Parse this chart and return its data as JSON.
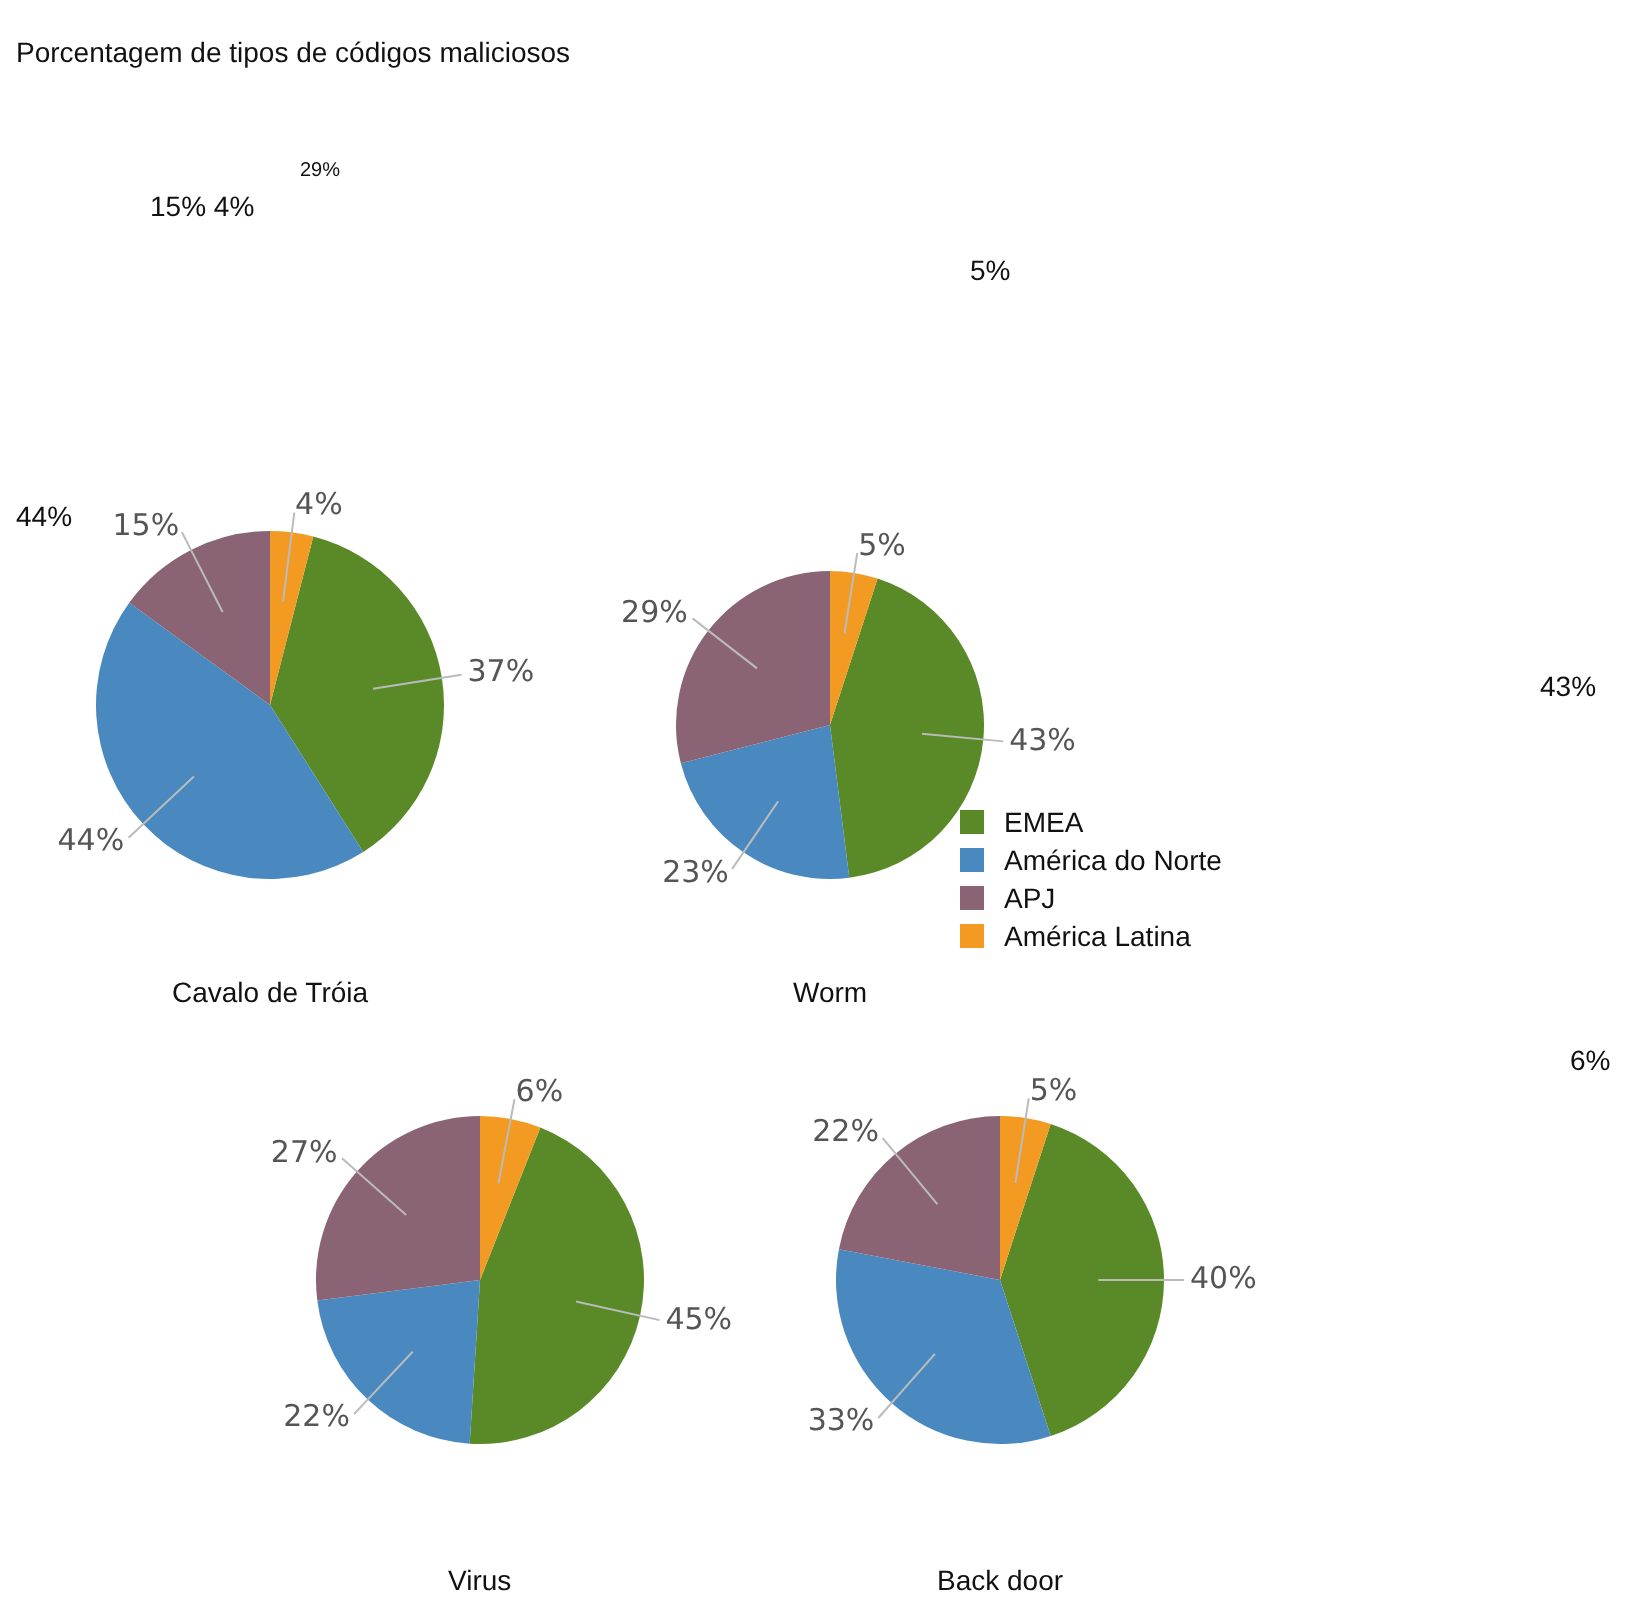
{
  "chart_data": [
    {
      "type": "pie",
      "title": "Porcentagem de tipos de códigos maliciosos",
      "subtitle": "Cavalo de Tróia",
      "categories": [
        null,
        null,
        null,
        null
      ],
      "values": [
        37,
        44,
        15,
        4
      ],
      "colors": [
        "#5a8a28",
        "#4a89c0",
        "#8a6475",
        "#f39a23"
      ],
      "value_labels": [
        "37%",
        "44%",
        "15%",
        "4%"
      ],
      "annotations": [
        "15% 4%",
        "29%",
        "44%"
      ]
    },
    {
      "type": "pie",
      "subtitle": "Worm",
      "categories": [
        "EMEA",
        "América do Norte",
        "APJ",
        "América Latina"
      ],
      "values": [
        43,
        23,
        29,
        5
      ],
      "colors": [
        "#5a8a28",
        "#4a89c0",
        "#8a6475",
        "#f39a23"
      ],
      "value_labels": [
        "43%",
        "23%",
        "29%",
        "5%"
      ],
      "legend": "right",
      "annotations": [
        "5%",
        "43%"
      ]
    },
    {
      "type": "pie",
      "subtitle": "Virus",
      "categories": [
        null,
        null,
        null,
        null
      ],
      "values": [
        45,
        22,
        27,
        6
      ],
      "colors": [
        "#5a8a28",
        "#4a89c0",
        "#8a6475",
        "#f39a23"
      ],
      "value_labels": [
        "45%",
        "22%",
        "27%",
        "6%"
      ]
    },
    {
      "type": "pie",
      "subtitle": "Back door",
      "categories": [
        null,
        null,
        null,
        null
      ],
      "values": [
        40,
        33,
        22,
        5
      ],
      "colors": [
        "#5a8a28",
        "#4a89c0",
        "#8a6475",
        "#f39a23"
      ],
      "value_labels": [
        "40%",
        "33%",
        "22%",
        "5%"
      ],
      "annotations": [
        "6%"
      ]
    }
  ]
}
